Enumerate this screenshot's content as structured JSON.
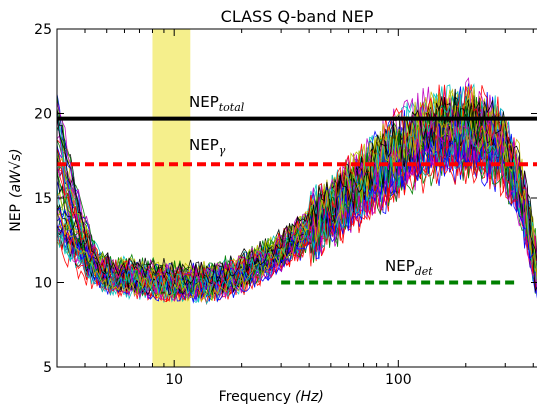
{
  "chart_data": {
    "type": "line",
    "title": "CLASS Q-band NEP",
    "xlabel": "Frequency",
    "xlabel_unit": "(Hz)",
    "ylabel": "NEP",
    "ylabel_unit": "(aW√s)",
    "xscale": "log",
    "xlim": [
      3,
      420
    ],
    "ylim": [
      5,
      25
    ],
    "x_ticks": [
      10,
      100
    ],
    "x_tick_labels": [
      "10",
      "100"
    ],
    "y_ticks": [
      5,
      10,
      15,
      20,
      25
    ],
    "y_tick_labels": [
      "5",
      "10",
      "15",
      "20",
      "25"
    ],
    "shaded_band": {
      "x_from": 8,
      "x_to": 11.8,
      "color": "#f5ef8c"
    },
    "reference_lines": [
      {
        "label": "NEP",
        "subscript": "total",
        "y": 19.7,
        "x_from": 3,
        "x_to": 420,
        "style": "solid",
        "color": "#000000"
      },
      {
        "label": "NEP",
        "subscript": "γ",
        "y": 17.0,
        "x_from": 3,
        "x_to": 420,
        "style": "dashed",
        "color": "#ff0000"
      },
      {
        "label": "NEP",
        "subscript": "det",
        "y": 10.0,
        "x_from": 30,
        "x_to": 330,
        "style": "dashed",
        "color": "#008000"
      }
    ],
    "series_colors": [
      "#0000ff",
      "#008000",
      "#ff0000",
      "#00bfbf",
      "#bf00bf",
      "#bfbf00",
      "#000000"
    ],
    "noise_profile": {
      "x": [
        3,
        4,
        5,
        7,
        10,
        15,
        20,
        30,
        50,
        70,
        100,
        150,
        200,
        280,
        350,
        420
      ],
      "y": [
        12.0,
        11.0,
        10.6,
        10.3,
        10.1,
        10.1,
        10.6,
        12.0,
        14.5,
        16.3,
        18.0,
        19.3,
        19.5,
        18.7,
        16.0,
        10.5
      ]
    },
    "num_detector_traces": 56
  }
}
